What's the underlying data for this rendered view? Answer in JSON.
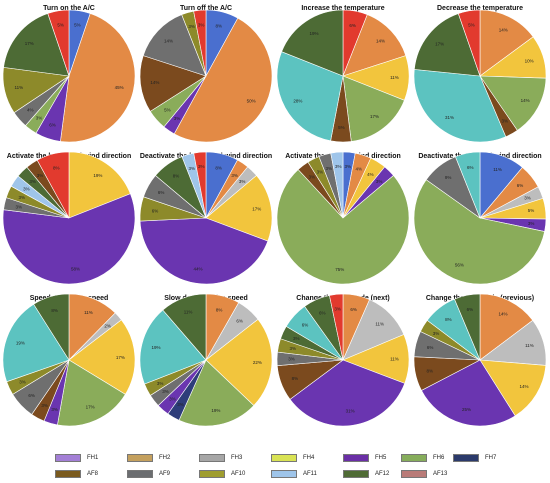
{
  "legend": {
    "FH1": {
      "label": "FH1",
      "color": "#a37fd6"
    },
    "FH2": {
      "label": "FH2",
      "color": "#c4a05e"
    },
    "FH3": {
      "label": "FH3",
      "color": "#a6a6a6"
    },
    "FH4": {
      "label": "FH4",
      "color": "#d9e354"
    },
    "FH5": {
      "label": "FH5",
      "color": "#6a2fa6"
    },
    "FH6": {
      "label": "FH6",
      "color": "#86ad5b"
    },
    "FH7": {
      "label": "FH7",
      "color": "#2b3a6b"
    },
    "AF8": {
      "label": "AF8",
      "color": "#7a5a1e"
    },
    "AF9": {
      "label": "AF9",
      "color": "#6b6d70"
    },
    "AF10": {
      "label": "AF10",
      "color": "#9f9d2f"
    },
    "AF11": {
      "label": "AF11",
      "color": "#9fc5ea"
    },
    "AF12": {
      "label": "AF12",
      "color": "#4f6b35"
    },
    "AF13": {
      "label": "AF13",
      "color": "#b97b78"
    }
  },
  "slice_colors": {
    "red": "#e23a2e",
    "blue": "#4a6fcf",
    "orange": "#e38a45",
    "yellow": "#f2c53d",
    "purple": "#6a35b0",
    "green": "#8aac5a",
    "teal": "#5cc3c0",
    "brown": "#7b4a1e",
    "olive": "#8d8a2a",
    "darkgreen": "#4d6b35",
    "gray": "#6f6f6f",
    "lightgray": "#bdbdbd",
    "navy": "#2e3d7a",
    "lightblue": "#9fc5ea"
  },
  "chart_data": [
    {
      "type": "pie",
      "title": "Turn on the A/C",
      "slices": [
        {
          "label": "5%",
          "value": 5,
          "color": "blue"
        },
        {
          "label": "45%",
          "value": 45,
          "color": "orange"
        },
        {
          "label": "6%",
          "value": 6,
          "color": "purple"
        },
        {
          "label": "3%",
          "value": 3,
          "color": "green"
        },
        {
          "label": "4%",
          "value": 4,
          "color": "gray"
        },
        {
          "label": "11%",
          "value": 11,
          "color": "olive"
        },
        {
          "label": "17%",
          "value": 17,
          "color": "darkgreen"
        },
        {
          "label": "5%",
          "value": 5,
          "color": "red"
        }
      ]
    },
    {
      "type": "pie",
      "title": "Turn off the A/C",
      "slices": [
        {
          "label": "8%",
          "value": 8,
          "color": "blue"
        },
        {
          "label": "50%",
          "value": 50,
          "color": "orange"
        },
        {
          "label": "3%",
          "value": 3,
          "color": "purple"
        },
        {
          "label": "5%",
          "value": 5,
          "color": "green"
        },
        {
          "label": "14%",
          "value": 14,
          "color": "brown"
        },
        {
          "label": "14%",
          "value": 14,
          "color": "gray"
        },
        {
          "label": "3%",
          "value": 3,
          "color": "olive"
        },
        {
          "label": "3%",
          "value": 3,
          "color": "red"
        }
      ]
    },
    {
      "type": "pie",
      "title": "Increase the temperature",
      "slices": [
        {
          "label": "6%",
          "value": 6,
          "color": "red"
        },
        {
          "label": "14%",
          "value": 14,
          "color": "orange"
        },
        {
          "label": "11%",
          "value": 11,
          "color": "yellow"
        },
        {
          "label": "17%",
          "value": 17,
          "color": "green"
        },
        {
          "label": "5%",
          "value": 5,
          "color": "brown"
        },
        {
          "label": "28%",
          "value": 28,
          "color": "teal"
        },
        {
          "label": "19%",
          "value": 19,
          "color": "darkgreen"
        }
      ]
    },
    {
      "type": "pie",
      "title": "Decrease the temperature",
      "slices": [
        {
          "label": "14%",
          "value": 14,
          "color": "orange"
        },
        {
          "label": "10%",
          "value": 10,
          "color": "yellow"
        },
        {
          "label": "14%",
          "value": 14,
          "color": "green"
        },
        {
          "label": "3%",
          "value": 3,
          "color": "brown"
        },
        {
          "label": "31%",
          "value": 31,
          "color": "teal"
        },
        {
          "label": "17%",
          "value": 17,
          "color": "darkgreen"
        },
        {
          "label": "5%",
          "value": 5,
          "color": "red"
        }
      ]
    },
    {
      "type": "pie",
      "title": "Activate the horizontal wind direction",
      "slices": [
        {
          "label": "19%",
          "value": 19,
          "color": "yellow"
        },
        {
          "label": "58%",
          "value": 58,
          "color": "purple"
        },
        {
          "label": "3%",
          "value": 3,
          "color": "gray"
        },
        {
          "label": "3%",
          "value": 3,
          "color": "olive"
        },
        {
          "label": "3%",
          "value": 3,
          "color": "lightblue"
        },
        {
          "label": "3%",
          "value": 3,
          "color": "darkgreen"
        },
        {
          "label": "3%",
          "value": 3,
          "color": "brown"
        },
        {
          "label": "8%",
          "value": 8,
          "color": "red"
        }
      ]
    },
    {
      "type": "pie",
      "title": "Deactivate the horizontal wind direction",
      "slices": [
        {
          "label": "8%",
          "value": 8,
          "color": "blue"
        },
        {
          "label": "3%",
          "value": 3,
          "color": "orange"
        },
        {
          "label": "3%",
          "value": 3,
          "color": "lightgray"
        },
        {
          "label": "17%",
          "value": 17,
          "color": "yellow"
        },
        {
          "label": "44%",
          "value": 44,
          "color": "purple"
        },
        {
          "label": "6%",
          "value": 6,
          "color": "olive"
        },
        {
          "label": "6%",
          "value": 6,
          "color": "gray"
        },
        {
          "label": "8%",
          "value": 8,
          "color": "darkgreen"
        },
        {
          "label": "3%",
          "value": 3,
          "color": "lightblue"
        },
        {
          "label": "3%",
          "value": 3,
          "color": "red"
        }
      ]
    },
    {
      "type": "pie",
      "title": "Activate the vertical wind direction",
      "slices": [
        {
          "label": "3%",
          "value": 3,
          "color": "blue"
        },
        {
          "label": "4%",
          "value": 4,
          "color": "orange"
        },
        {
          "label": "4%",
          "value": 4,
          "color": "yellow"
        },
        {
          "label": "3%",
          "value": 3,
          "color": "purple"
        },
        {
          "label": "75%",
          "value": 75,
          "color": "green"
        },
        {
          "label": "3%",
          "value": 3,
          "color": "brown"
        },
        {
          "label": "3%",
          "value": 3,
          "color": "olive"
        },
        {
          "label": "3%",
          "value": 3,
          "color": "gray"
        },
        {
          "label": "3%",
          "value": 3,
          "color": "lightblue"
        }
      ]
    },
    {
      "type": "pie",
      "title": "Deactivate the vertical wind direction",
      "slices": [
        {
          "label": "11%",
          "value": 11,
          "color": "blue"
        },
        {
          "label": "6%",
          "value": 6,
          "color": "orange"
        },
        {
          "label": "3%",
          "value": 3,
          "color": "lightgray"
        },
        {
          "label": "5%",
          "value": 5,
          "color": "yellow"
        },
        {
          "label": "3%",
          "value": 3,
          "color": "purple"
        },
        {
          "label": "56%",
          "value": 56,
          "color": "green"
        },
        {
          "label": "9%",
          "value": 9,
          "color": "gray"
        },
        {
          "label": "6%",
          "value": 6,
          "color": "teal"
        }
      ]
    },
    {
      "type": "pie",
      "title": "Speed up the fan speed",
      "slices": [
        {
          "label": "11%",
          "value": 11,
          "color": "orange"
        },
        {
          "label": "2%",
          "value": 2,
          "color": "lightgray"
        },
        {
          "label": "17%",
          "value": 17,
          "color": "yellow"
        },
        {
          "label": "17%",
          "value": 17,
          "color": "green"
        },
        {
          "label": "3%",
          "value": 3,
          "color": "purple"
        },
        {
          "label": "3%",
          "value": 3,
          "color": "brown"
        },
        {
          "label": "6%",
          "value": 6,
          "color": "gray"
        },
        {
          "label": "3%",
          "value": 3,
          "color": "olive"
        },
        {
          "label": "19%",
          "value": 19,
          "color": "teal"
        },
        {
          "label": "8%",
          "value": 8,
          "color": "darkgreen"
        }
      ]
    },
    {
      "type": "pie",
      "title": "Slow down the fan speed",
      "slices": [
        {
          "label": "8%",
          "value": 8,
          "color": "orange"
        },
        {
          "label": "6%",
          "value": 6,
          "color": "lightgray"
        },
        {
          "label": "22%",
          "value": 22,
          "color": "yellow"
        },
        {
          "label": "19%",
          "value": 19,
          "color": "green"
        },
        {
          "label": "3%",
          "value": 3,
          "color": "navy"
        },
        {
          "label": "3%",
          "value": 3,
          "color": "purple"
        },
        {
          "label": "3%",
          "value": 3,
          "color": "gray"
        },
        {
          "label": "3%",
          "value": 3,
          "color": "olive"
        },
        {
          "label": "19%",
          "value": 19,
          "color": "teal"
        },
        {
          "label": "11%",
          "value": 11,
          "color": "darkgreen"
        }
      ]
    },
    {
      "type": "pie",
      "title": "Change the A/C mode (next)",
      "slices": [
        {
          "label": "6%",
          "value": 6,
          "color": "orange"
        },
        {
          "label": "11%",
          "value": 11,
          "color": "lightgray"
        },
        {
          "label": "11%",
          "value": 11,
          "color": "yellow"
        },
        {
          "label": "31%",
          "value": 31,
          "color": "purple"
        },
        {
          "label": "8%",
          "value": 8,
          "color": "brown"
        },
        {
          "label": "3%",
          "value": 3,
          "color": "gray"
        },
        {
          "label": "3%",
          "value": 3,
          "color": "olive"
        },
        {
          "label": "3%",
          "value": 3,
          "color": "darkgreen"
        },
        {
          "label": "6%",
          "value": 6,
          "color": "teal"
        },
        {
          "label": "6%",
          "value": 6,
          "color": "darkgreen"
        },
        {
          "label": "3%",
          "value": 3,
          "color": "red"
        }
      ]
    },
    {
      "type": "pie",
      "title": "Change the A/C mode (previous)",
      "slices": [
        {
          "label": "14%",
          "value": 14,
          "color": "orange"
        },
        {
          "label": "11%",
          "value": 11,
          "color": "lightgray"
        },
        {
          "label": "14%",
          "value": 14,
          "color": "yellow"
        },
        {
          "label": "25%",
          "value": 25,
          "color": "purple"
        },
        {
          "label": "8%",
          "value": 8,
          "color": "brown"
        },
        {
          "label": "6%",
          "value": 6,
          "color": "gray"
        },
        {
          "label": "3%",
          "value": 3,
          "color": "olive"
        },
        {
          "label": "8%",
          "value": 8,
          "color": "teal"
        },
        {
          "label": "6%",
          "value": 6,
          "color": "darkgreen"
        }
      ]
    }
  ]
}
